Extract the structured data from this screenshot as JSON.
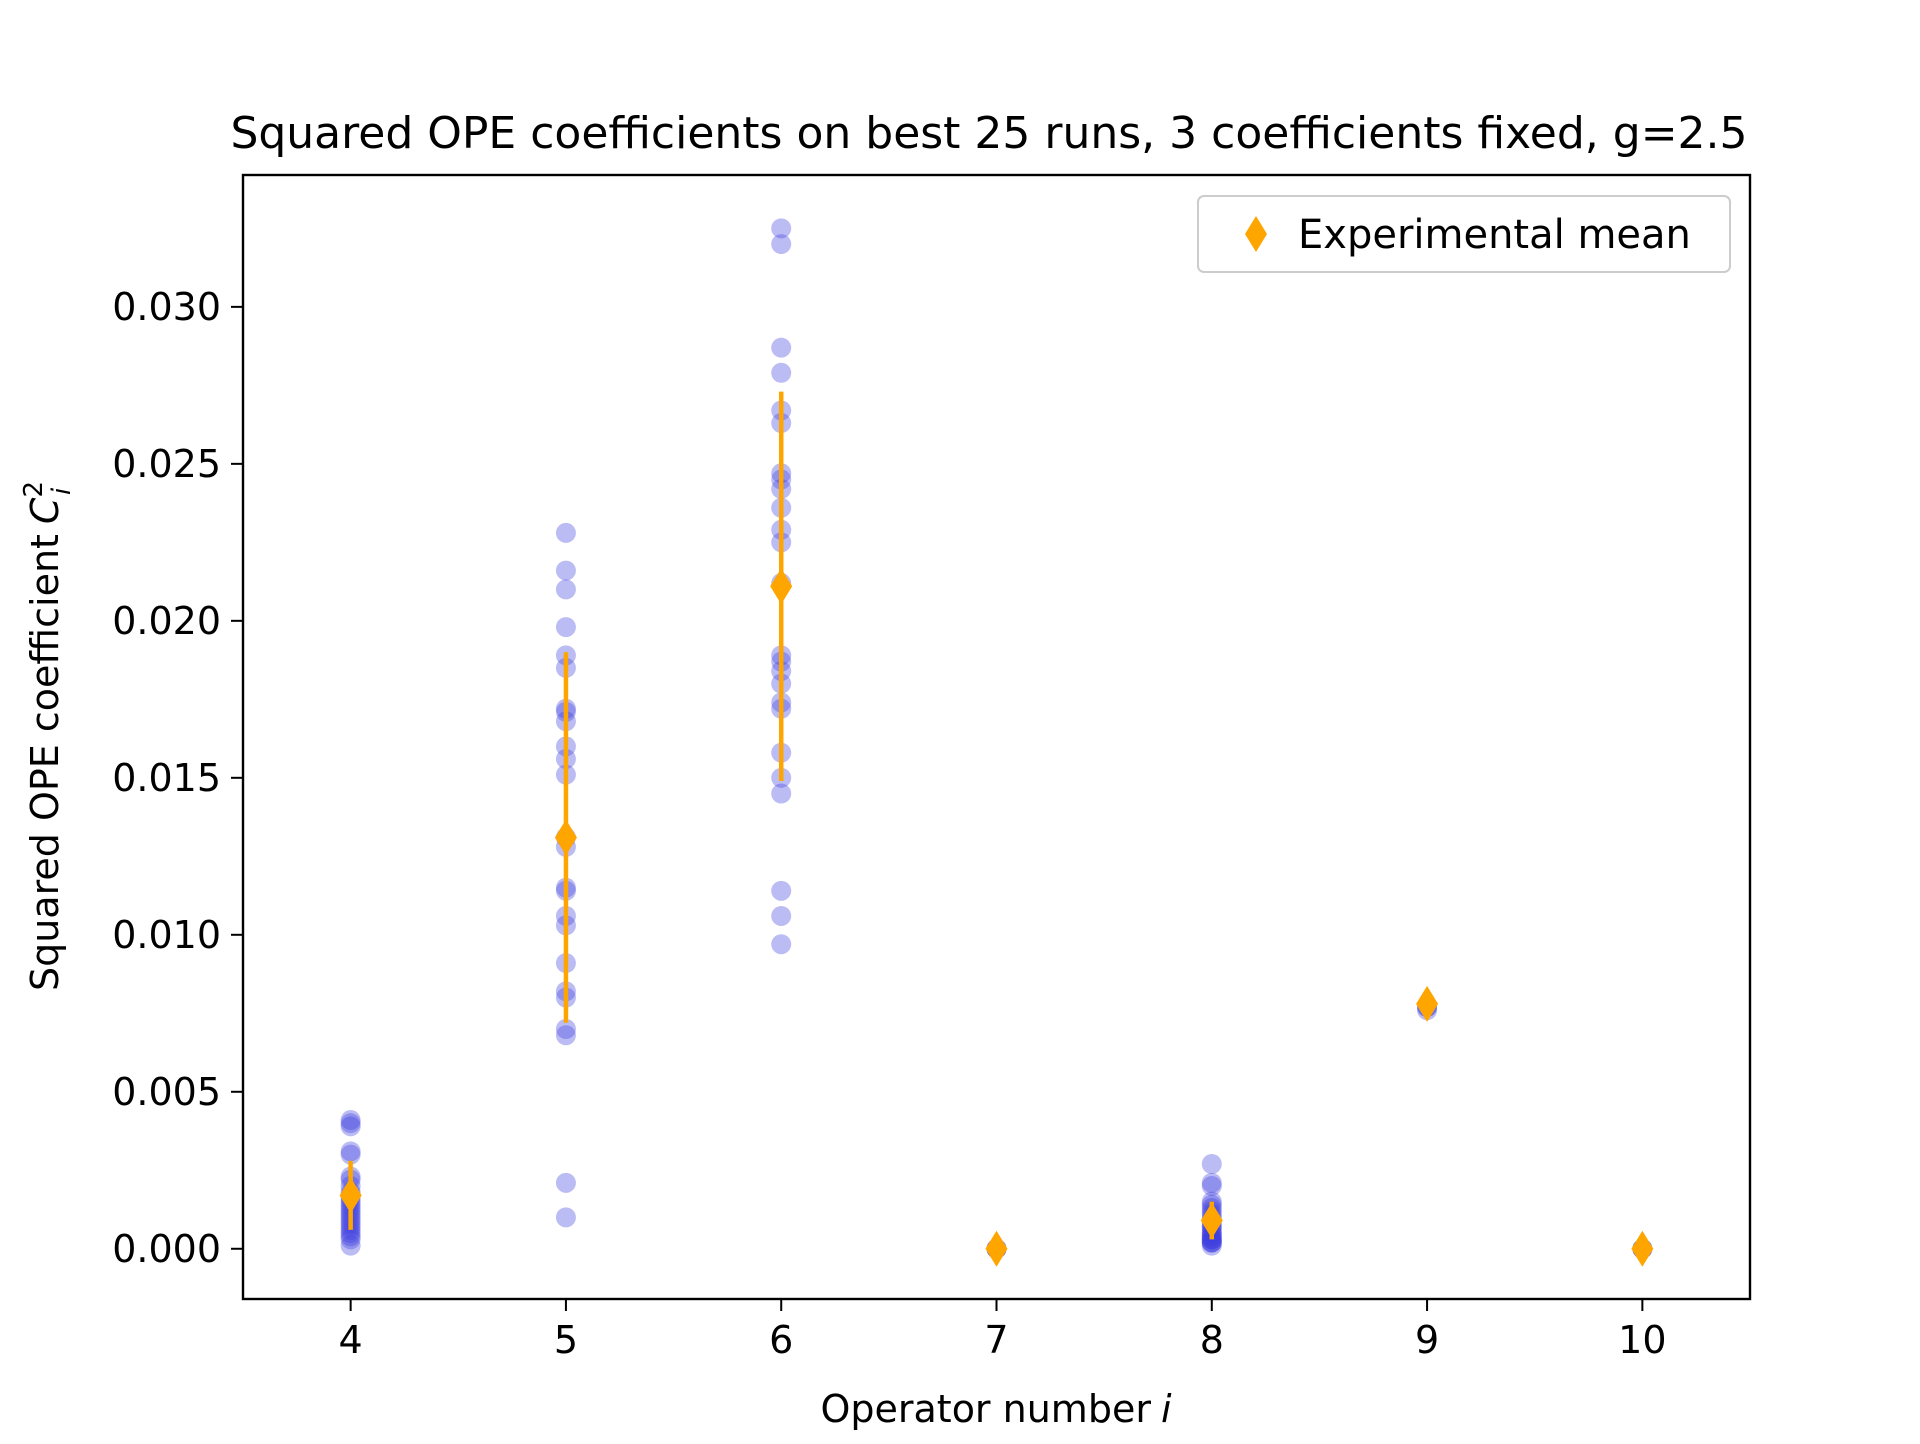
{
  "chart_data": {
    "type": "scatter",
    "title": "Squared OPE coefficients on best 25 runs, 3 coefficients fixed, g=2.5",
    "xlabel": "Operator number",
    "xlabel_var": "i",
    "ylabel": "Squared OPE coefficient",
    "ylabel_var": "C",
    "ylabel_sup": "2",
    "ylabel_sub": "i",
    "xlim": [
      3.5,
      10.5
    ],
    "ylim": [
      -0.0016,
      0.0342
    ],
    "x_ticks": [
      "4",
      "5",
      "6",
      "7",
      "8",
      "9",
      "10"
    ],
    "y_ticks": [
      "0.000",
      "0.005",
      "0.010",
      "0.015",
      "0.020",
      "0.025",
      "0.030"
    ],
    "grid": false,
    "legend": {
      "position": "top-right",
      "entries": [
        "Experimental mean"
      ]
    },
    "colors": {
      "runs": "#4040e0",
      "mean": "#ffa500",
      "axes": "#000000"
    },
    "series": [
      {
        "name": "",
        "marker": "circle",
        "x": [
          4,
          4,
          4,
          4,
          4,
          4,
          4,
          4,
          4,
          4,
          4,
          4,
          4,
          4,
          4,
          4,
          4,
          4,
          4,
          4,
          4,
          4,
          4,
          4,
          4,
          5,
          5,
          5,
          5,
          5,
          5,
          5,
          5,
          5,
          5,
          5,
          5,
          5,
          5,
          5,
          5,
          5,
          5,
          5,
          5,
          5,
          5,
          5,
          5,
          5,
          6,
          6,
          6,
          6,
          6,
          6,
          6,
          6,
          6,
          6,
          6,
          6,
          6,
          6,
          6,
          6,
          6,
          6,
          6,
          6,
          6,
          6,
          6,
          6,
          6,
          7,
          7,
          7,
          8,
          8,
          8,
          8,
          8,
          8,
          8,
          8,
          8,
          8,
          8,
          8,
          8,
          8,
          8,
          8,
          8,
          8,
          8,
          8,
          8,
          8,
          8,
          8,
          8,
          9,
          9,
          9,
          10,
          10,
          10
        ],
        "y": [
          0.0041,
          0.004,
          0.0039,
          0.0031,
          0.003,
          0.0023,
          0.0022,
          0.002,
          0.0018,
          0.0017,
          0.0016,
          0.0015,
          0.0014,
          0.0013,
          0.0012,
          0.0011,
          0.001,
          0.0009,
          0.0008,
          0.0007,
          0.0006,
          0.0005,
          0.0004,
          0.0003,
          0.0001,
          0.0228,
          0.0216,
          0.021,
          0.0198,
          0.0189,
          0.0185,
          0.0172,
          0.0171,
          0.0168,
          0.016,
          0.0156,
          0.0151,
          0.0131,
          0.0128,
          0.0115,
          0.0114,
          0.0106,
          0.0103,
          0.0091,
          0.0082,
          0.008,
          0.007,
          0.0068,
          0.0021,
          0.001,
          0.0325,
          0.032,
          0.0287,
          0.0279,
          0.0267,
          0.0263,
          0.0247,
          0.0245,
          0.0242,
          0.0236,
          0.0229,
          0.0225,
          0.0189,
          0.0187,
          0.0184,
          0.018,
          0.0174,
          0.0172,
          0.0158,
          0.015,
          0.0145,
          0.0114,
          0.0106,
          0.0097,
          0.0212,
          0.0,
          0.0,
          0.0,
          0.0027,
          0.0021,
          0.002,
          0.0015,
          0.0014,
          0.0013,
          0.0012,
          0.0011,
          0.001,
          0.0009,
          0.0008,
          0.0007,
          0.0007,
          0.0006,
          0.0005,
          0.0005,
          0.0004,
          0.0004,
          0.0003,
          0.0003,
          0.0003,
          0.0002,
          0.0002,
          0.0002,
          0.0001,
          0.0077,
          0.0077,
          0.0076,
          0.0,
          0.0,
          0.0
        ]
      },
      {
        "name": "Experimental mean",
        "marker": "diamond",
        "x": [
          4,
          5,
          6,
          7,
          8,
          9,
          10
        ],
        "y": [
          0.0017,
          0.0131,
          0.0211,
          0.0,
          0.0009,
          0.0078,
          0.0
        ],
        "yerr": [
          0.0011,
          0.0059,
          0.0062,
          0.0,
          0.0006,
          0.0,
          0.0
        ]
      }
    ]
  }
}
